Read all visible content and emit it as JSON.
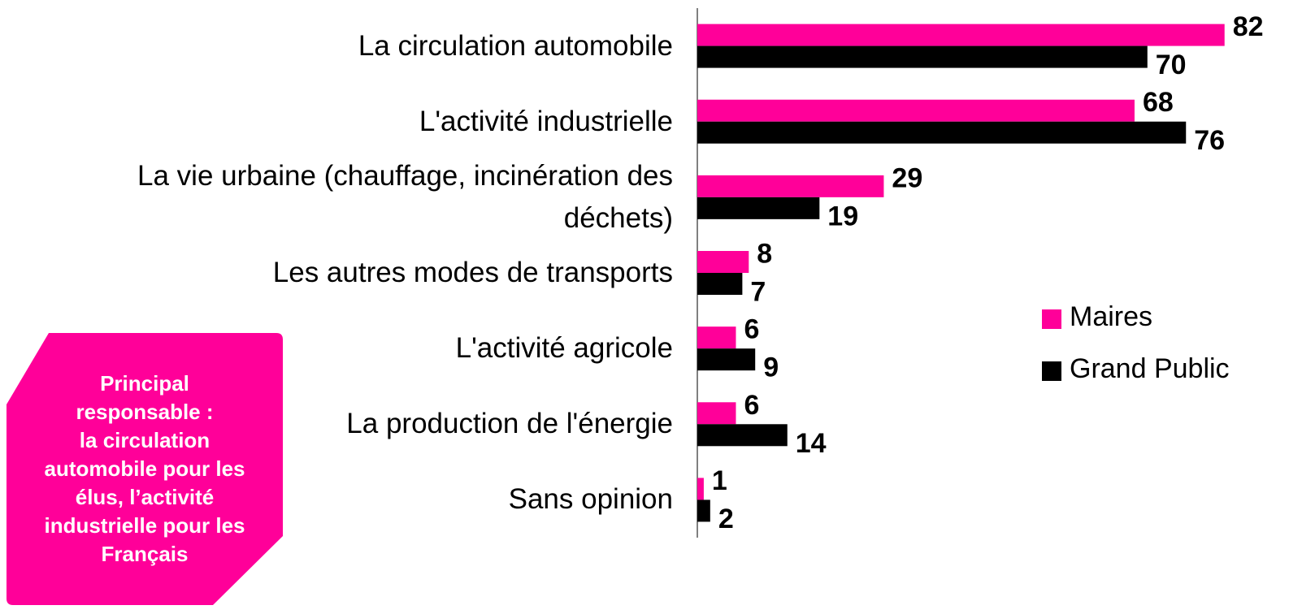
{
  "chart_data": {
    "type": "hbar",
    "categories": [
      "La circulation automobile",
      "L'activité industrielle",
      "La vie urbaine (chauffage, incinération des déchets)",
      "Les autres modes de transports",
      "L'activité agricole",
      "La production de l'énergie",
      "Sans opinion"
    ],
    "series": [
      {
        "name": "Maires",
        "color": "#ff0099",
        "values": [
          82,
          68,
          29,
          8,
          6,
          6,
          1
        ]
      },
      {
        "name": "Grand Public",
        "color": "#000000",
        "values": [
          70,
          76,
          19,
          7,
          9,
          14,
          2
        ]
      }
    ],
    "xlim": [
      0,
      90
    ],
    "legend": "right",
    "annotation": [
      "Principal",
      "responsable :",
      "la circulation",
      "automobile pour les",
      "élus, l’activité",
      "industrielle pour les",
      "Français"
    ],
    "annotation_color": "#ff0099"
  }
}
